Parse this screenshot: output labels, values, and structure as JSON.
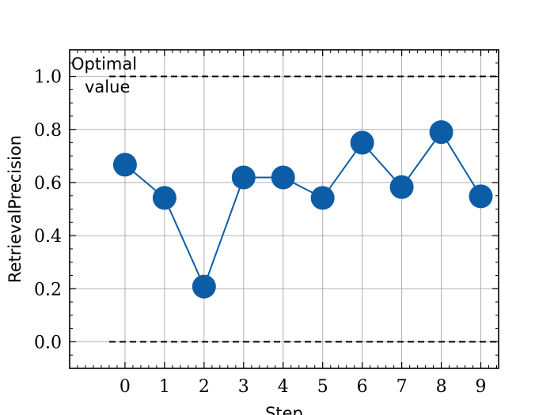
{
  "chart_data": {
    "type": "line",
    "title": "",
    "xlabel": "Step",
    "ylabel": "RetrievalPrecision",
    "x": [
      0,
      1,
      2,
      3,
      4,
      5,
      6,
      7,
      8,
      9
    ],
    "series": [
      {
        "values": [
          0.667,
          0.542,
          0.208,
          0.619,
          0.619,
          0.542,
          0.75,
          0.583,
          0.79,
          0.548
        ]
      }
    ],
    "xlim": [
      -1.4,
      9.45
    ],
    "ylim": [
      -0.1,
      1.1
    ],
    "xticks": [
      0,
      1,
      2,
      3,
      4,
      5,
      6,
      7,
      8,
      9
    ],
    "yticks": [
      0.0,
      0.2,
      0.4,
      0.6,
      0.8,
      1.0
    ],
    "ytick_labels": [
      "0.0",
      "0.2",
      "0.4",
      "0.6",
      "0.8",
      "1.0"
    ],
    "reference_lines": [
      {
        "y": 1.0,
        "style": "dashed",
        "color": "#000000"
      },
      {
        "y": 0.0,
        "style": "dashed",
        "color": "#000000"
      }
    ],
    "annotations": [
      {
        "text_line1": "Optimal",
        "text_line2": "value"
      }
    ],
    "grid": true,
    "line_color": "#0C5DA5"
  }
}
